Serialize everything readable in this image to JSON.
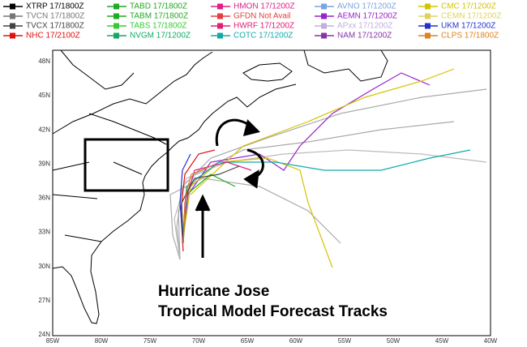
{
  "legend": [
    {
      "label": "XTRP 17/1800Z",
      "color": "#000000"
    },
    {
      "label": "TABD 17/1800Z",
      "color": "#22aa22"
    },
    {
      "label": "HMON 17/1200Z",
      "color": "#e0208a"
    },
    {
      "label": "AVNO 17/1200Z",
      "color": "#7aa6e0"
    },
    {
      "label": "CMC 17/1200Z",
      "color": "#d4c400"
    },
    {
      "label": "TVCN 17/1800Z",
      "color": "#777777"
    },
    {
      "label": "TABM 17/1800Z",
      "color": "#22aa22"
    },
    {
      "label": "GFDN Not Avail",
      "color": "#e04040"
    },
    {
      "label": "AEMN 17/1200Z",
      "color": "#9922cc"
    },
    {
      "label": "CEMN 17/1200Z",
      "color": "#e0d060"
    },
    {
      "label": "TVCX 17/1800Z",
      "color": "#444444"
    },
    {
      "label": "TABS 17/1800Z",
      "color": "#33cc33"
    },
    {
      "label": "HWRF 17/1200Z",
      "color": "#e02070"
    },
    {
      "label": "APxx 17/1200Z",
      "color": "#c0b0e0"
    },
    {
      "label": "UKM 17/1200Z",
      "color": "#2233cc"
    },
    {
      "label": "NHC 17/2100Z",
      "color": "#e01010"
    },
    {
      "label": "NVGM 17/1200Z",
      "color": "#11aa66"
    },
    {
      "label": "COTC 17/1200Z",
      "color": "#11aaaa"
    },
    {
      "label": "NAM 17/1200Z",
      "color": "#8833aa"
    },
    {
      "label": "CLPS 17/1800Z",
      "color": "#e08020"
    }
  ],
  "lat_labels": [
    "48N",
    "45N",
    "42N",
    "39N",
    "36N",
    "33N",
    "30N",
    "27N",
    "24N"
  ],
  "lon_labels": [
    "85W",
    "80W",
    "75W",
    "70W",
    "65W",
    "60W",
    "55W",
    "50W",
    "45W",
    "40W"
  ],
  "annotation": [
    "Hurricane Jose",
    "Tropical Model Forecast Tracks"
  ]
}
